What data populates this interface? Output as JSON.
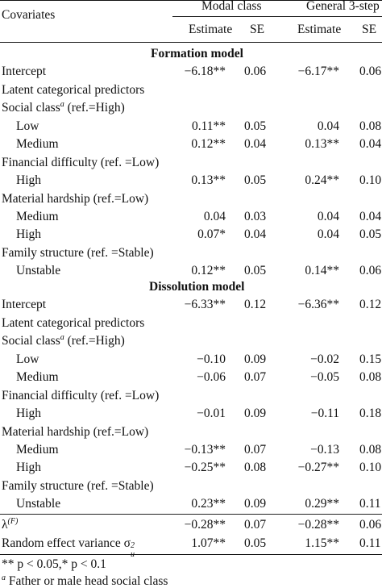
{
  "header": {
    "covariates": "Covariates",
    "group1": "Modal class",
    "group2": "General 3-step",
    "sub1": "Estimate",
    "sub2": "SE",
    "sub3": "Estimate",
    "sub4": "SE"
  },
  "sections": {
    "formation": "Formation model",
    "dissolution": "Dissolution model"
  },
  "formation": {
    "intercept": {
      "label": "Intercept",
      "e1": "−6.18**",
      "s1": "0.06",
      "e2": "−6.17**",
      "s2": "0.06"
    },
    "latent": "Latent categorical predictors",
    "social": "Social class",
    "social_sup": "a",
    "social_ref": " (ref.=High)",
    "low": {
      "label": "Low",
      "e1": "0.11**",
      "s1": "0.05",
      "e2": "0.04",
      "s2": "0.08"
    },
    "medium": {
      "label": "Medium",
      "e1": "0.12**",
      "s1": "0.04",
      "e2": "0.13**",
      "s2": "0.04"
    },
    "financial": "Financial difficulty (ref. =Low)",
    "fin_high": {
      "label": "High",
      "e1": "0.13**",
      "s1": "0.05",
      "e2": "0.24**",
      "s2": "0.10"
    },
    "material": "Material hardship (ref.=Low)",
    "mat_medium": {
      "label": "Medium",
      "e1": "0.04",
      "s1": "0.03",
      "e2": "0.04",
      "s2": "0.04"
    },
    "mat_high": {
      "label": "High",
      "e1": "0.07*",
      "s1": "0.04",
      "e2": "0.04",
      "s2": "0.05"
    },
    "family": "Family structure (ref. =Stable)",
    "unstable": {
      "label": "Unstable",
      "e1": "0.12**",
      "s1": "0.05",
      "e2": "0.14**",
      "s2": "0.06"
    }
  },
  "dissolution": {
    "intercept": {
      "label": "Intercept",
      "e1": "−6.33**",
      "s1": "0.12",
      "e2": "−6.36**",
      "s2": "0.12"
    },
    "latent": "Latent categorical predictors",
    "social": "Social class",
    "social_sup": "a",
    "social_ref": " (ref.=High)",
    "low": {
      "label": "Low",
      "e1": "−0.10",
      "s1": "0.09",
      "e2": "−0.02",
      "s2": "0.15"
    },
    "medium": {
      "label": "Medium",
      "e1": "−0.06",
      "s1": "0.07",
      "e2": "−0.05",
      "s2": "0.08"
    },
    "financial": "Financial difficulty (ref. =Low)",
    "fin_high": {
      "label": "High",
      "e1": "−0.01",
      "s1": "0.09",
      "e2": "−0.11",
      "s2": "0.18"
    },
    "material": "Material hardship (ref.=Low)",
    "mat_medium": {
      "label": "Medium",
      "e1": "−0.13**",
      "s1": "0.07",
      "e2": "−0.13",
      "s2": "0.08"
    },
    "mat_high": {
      "label": "High",
      "e1": "−0.25**",
      "s1": "0.08",
      "e2": "−0.27**",
      "s2": "0.10"
    },
    "family": "Family structure (ref. =Stable)",
    "unstable": {
      "label": "Unstable",
      "e1": "0.23**",
      "s1": "0.09",
      "e2": "0.29**",
      "s2": "0.11"
    }
  },
  "lambda": {
    "symbol": "λ",
    "sup": "(F)",
    "e1": "−0.28**",
    "s1": "0.07",
    "e2": "−0.28**",
    "s2": "0.06"
  },
  "random": {
    "label": "Random effect variance σ",
    "sub": "u",
    "sup": "2",
    "e1": "1.07**",
    "s1": "0.05",
    "e2": "1.15**",
    "s2": "0.11"
  },
  "notes": {
    "sig": "** p < 0.05,* p < 0.1",
    "footnote_mark": "a",
    "footnote": " Father or male head social class"
  }
}
